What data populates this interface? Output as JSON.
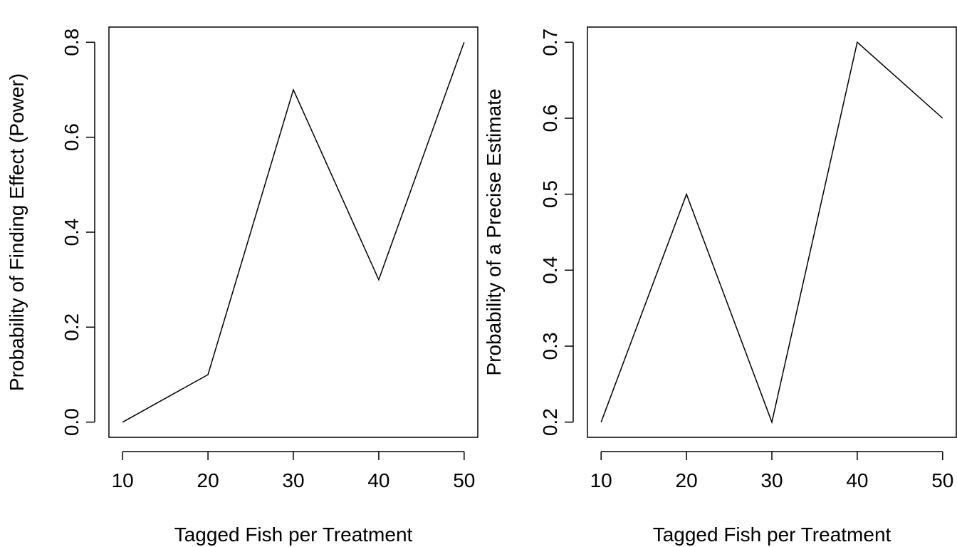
{
  "chart_data": [
    {
      "type": "line",
      "title": "",
      "xlabel": "Tagged Fish per Treatment",
      "ylabel": "Probability of Finding Effect (Power)",
      "x": [
        10,
        20,
        30,
        40,
        50
      ],
      "series": [
        {
          "values": [
            0.0,
            0.1,
            0.7,
            0.3,
            0.8
          ]
        }
      ],
      "xlim": [
        8.4,
        51.6
      ],
      "ylim": [
        -0.032,
        0.832
      ],
      "xticks": [
        10,
        20,
        30,
        40,
        50
      ],
      "xtick_labels": [
        "10",
        "20",
        "30",
        "40",
        "50"
      ],
      "yticks": [
        0.0,
        0.2,
        0.4,
        0.6,
        0.8
      ],
      "ytick_labels": [
        "0.0",
        "0.2",
        "0.4",
        "0.6",
        "0.8"
      ],
      "grid": false,
      "color": "#000000"
    },
    {
      "type": "line",
      "title": "",
      "xlabel": "Tagged Fish per Treatment",
      "ylabel": "Probability of a Precise Estimate",
      "x": [
        10,
        20,
        30,
        40,
        50
      ],
      "series": [
        {
          "values": [
            0.2,
            0.5,
            0.2,
            0.7,
            0.6
          ]
        }
      ],
      "xlim": [
        8.4,
        51.6
      ],
      "ylim": [
        0.18,
        0.72
      ],
      "xticks": [
        10,
        20,
        30,
        40,
        50
      ],
      "xtick_labels": [
        "10",
        "20",
        "30",
        "40",
        "50"
      ],
      "yticks": [
        0.2,
        0.3,
        0.4,
        0.5,
        0.6,
        0.7
      ],
      "ytick_labels": [
        "0.2",
        "0.3",
        "0.4",
        "0.5",
        "0.6",
        "0.7"
      ],
      "grid": false,
      "color": "#000000"
    }
  ]
}
